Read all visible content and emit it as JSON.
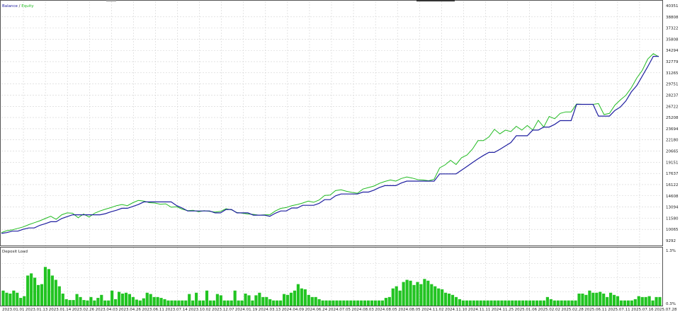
{
  "colors": {
    "balance": "#1f1fa0",
    "equity": "#22bb22",
    "deposit_bar": "#22c422",
    "grid": "#d2d2d2",
    "frame": "#555555",
    "background": "#ffffff"
  },
  "chart_data": [
    {
      "type": "line",
      "legend": {
        "placement": "top-left",
        "separator": " / "
      },
      "grid": true,
      "ylim": [
        9292,
        40351
      ],
      "y_ticks": [
        "40351",
        "38808",
        "37322",
        "35808",
        "34294",
        "32779",
        "31265",
        "29751",
        "28237",
        "26722",
        "25208",
        "23694",
        "22180",
        "20665",
        "19151",
        "17637",
        "16122",
        "14608",
        "13094",
        "11580",
        "10065",
        "9292"
      ],
      "x_count": 121,
      "series": [
        {
          "name": "Balance",
          "values": [
            10240,
            10350,
            10540,
            10540,
            10780,
            10960,
            10960,
            11300,
            11520,
            11780,
            11780,
            12200,
            12450,
            12700,
            12700,
            12700,
            12700,
            12700,
            12700,
            12850,
            13100,
            13300,
            13560,
            13560,
            13800,
            14050,
            14400,
            14400,
            14400,
            14400,
            14400,
            14400,
            13900,
            13600,
            13200,
            13200,
            13200,
            13200,
            13200,
            12950,
            12950,
            13400,
            13400,
            12950,
            12950,
            12950,
            12650,
            12650,
            12650,
            12500,
            12900,
            13200,
            13200,
            13600,
            13600,
            13950,
            13950,
            13950,
            14200,
            14700,
            14700,
            15200,
            15450,
            15450,
            15450,
            15450,
            15700,
            15700,
            15950,
            16300,
            16550,
            16550,
            16550,
            16900,
            17150,
            17150,
            17150,
            17150,
            17150,
            17150,
            18100,
            18100,
            18100,
            18100,
            18600,
            19100,
            19600,
            20100,
            20550,
            20950,
            20950,
            21350,
            21800,
            22250,
            23150,
            23150,
            23150,
            23900,
            23900,
            24300,
            24300,
            24650,
            25150,
            25150,
            25150,
            27300,
            27300,
            27300,
            27300,
            25750,
            25750,
            25750,
            26500,
            26950,
            27750,
            28950,
            29800,
            31050,
            32300,
            33650,
            33650
          ],
          "note_values": "equity series below"
        },
        {
          "name": "Equity",
          "values": [
            10350,
            10600,
            10700,
            10900,
            11100,
            11400,
            11650,
            11900,
            12200,
            12500,
            12100,
            12700,
            12950,
            12900,
            12300,
            12800,
            12400,
            12900,
            13200,
            13450,
            13650,
            13900,
            14050,
            13900,
            14300,
            14600,
            14500,
            14300,
            14250,
            14100,
            14150,
            13700,
            13750,
            13450,
            13250,
            13300,
            13100,
            13250,
            13150,
            13050,
            13150,
            13500,
            13350,
            13000,
            12900,
            12800,
            12750,
            12650,
            12700,
            12700,
            13200,
            13550,
            13650,
            13900,
            14050,
            14250,
            14500,
            14350,
            14650,
            15250,
            15300,
            15900,
            16000,
            15800,
            15650,
            15550,
            16100,
            16300,
            16500,
            16850,
            17100,
            17300,
            17150,
            17500,
            17700,
            17550,
            17350,
            17300,
            17200,
            17400,
            18900,
            19300,
            19900,
            19350,
            20250,
            20600,
            21400,
            22500,
            22500,
            23000,
            24000,
            23400,
            23900,
            23700,
            24400,
            23900,
            24500,
            23900,
            25200,
            24300,
            25700,
            25400,
            26100,
            26300,
            26300,
            27350,
            27300,
            27300,
            27300,
            27400,
            25950,
            26100,
            27200,
            27900,
            28500,
            29500,
            30800,
            31800,
            33300,
            34000,
            33600
          ]
        }
      ],
      "x_tick_labels": []
    },
    {
      "type": "bar",
      "title": "Deposit Load",
      "ylim": [
        0,
        1.3
      ],
      "y_ticks": [
        "1.3%",
        "0.3%"
      ],
      "values": [
        0.35,
        0.3,
        0.28,
        0.35,
        0.3,
        0.18,
        0.22,
        0.7,
        0.75,
        0.65,
        0.48,
        0.5,
        0.9,
        0.85,
        0.7,
        0.6,
        0.45,
        0.28,
        0.15,
        0.13,
        0.13,
        0.27,
        0.2,
        0.13,
        0.12,
        0.2,
        0.12,
        0.18,
        0.25,
        0.12,
        0.12,
        0.35,
        0.15,
        0.32,
        0.28,
        0.3,
        0.27,
        0.2,
        0.14,
        0.12,
        0.17,
        0.3,
        0.27,
        0.2,
        0.2,
        0.18,
        0.15,
        0.12,
        0.12,
        0.12,
        0.12,
        0.12,
        0.12,
        0.27,
        0.12,
        0.3,
        0.12,
        0.12,
        0.35,
        0.12,
        0.12,
        0.27,
        0.24,
        0.12,
        0.12,
        0.12,
        0.35,
        0.12,
        0.12,
        0.28,
        0.24,
        0.12,
        0.24,
        0.3,
        0.2,
        0.2,
        0.15,
        0.12,
        0.12,
        0.12,
        0.27,
        0.25,
        0.3,
        0.35,
        0.5,
        0.4,
        0.38,
        0.25,
        0.2,
        0.2,
        0.15,
        0.12,
        0.12,
        0.12,
        0.12,
        0.12,
        0.12,
        0.12,
        0.12,
        0.12,
        0.12,
        0.12,
        0.12,
        0.12,
        0.12,
        0.12,
        0.12,
        0.12,
        0.12,
        0.18,
        0.2,
        0.4,
        0.45,
        0.35,
        0.55,
        0.6,
        0.58,
        0.48,
        0.55,
        0.5,
        0.62,
        0.58,
        0.5,
        0.45,
        0.4,
        0.38,
        0.3,
        0.28,
        0.25,
        0.2,
        0.15,
        0.12,
        0.12,
        0.12,
        0.12,
        0.12,
        0.12,
        0.12,
        0.12,
        0.12,
        0.12,
        0.12,
        0.12,
        0.12,
        0.12,
        0.12,
        0.12,
        0.12,
        0.12,
        0.12,
        0.12,
        0.12,
        0.12,
        0.12,
        0.12,
        0.2,
        0.15,
        0.12,
        0.12,
        0.12,
        0.12,
        0.12,
        0.12,
        0.12,
        0.28,
        0.28,
        0.25,
        0.35,
        0.3,
        0.3,
        0.32,
        0.28,
        0.2,
        0.3,
        0.25,
        0.22,
        0.12,
        0.12,
        0.12,
        0.12,
        0.15,
        0.22,
        0.2,
        0.2,
        0.22,
        0.12,
        0.2,
        0.2
      ],
      "x_tick_labels": [
        "2023.01.01",
        "2023.01.13",
        "2023.01.14",
        "2023.02.26",
        "2023.04.03",
        "2023.04.26",
        "2023.06.11",
        "2023.07.14",
        "2023.10.02",
        "2023.12.07",
        "2024.01.19",
        "2024.03.13",
        "2024.04.09",
        "2024.06.24",
        "2024.07.05",
        "2024.08.03",
        "2024.08.05",
        "2024.08.05",
        "2024.11.02",
        "2024.11.10",
        "2024.11.11",
        "2024.11.25",
        "2025.01.06",
        "2025.02.02",
        "2025.02.28",
        "2025.06.11",
        "2025.07.11",
        "2025.07.16",
        "2025.07.28"
      ]
    }
  ]
}
